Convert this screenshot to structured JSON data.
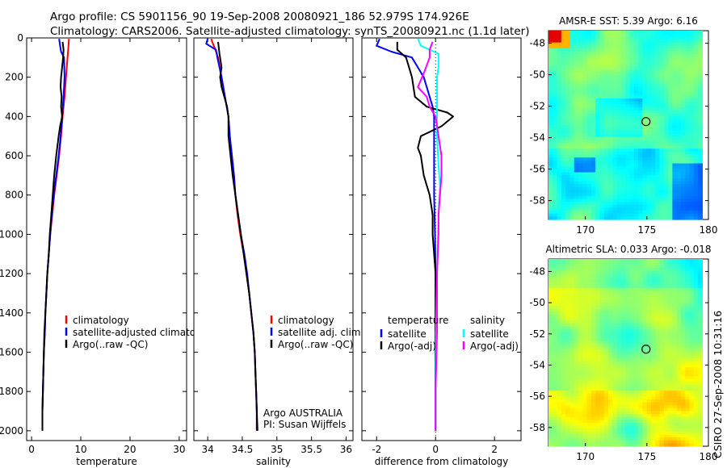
{
  "header": {
    "line1": "Argo profile: CS 5901156_90 19-Sep-2008 20080921_186 52.979S 174.926E",
    "line2": "Climatology: CARS2006. Satellite-adjusted climatology: synTS_20080921.nc (1.1d later)"
  },
  "stamp": "CSIRO 27-Sep-2008 10:31:16",
  "colors": {
    "climatology": "#ff0000",
    "satellite": "#0000ff",
    "argo": "#000000",
    "satellite_sal": "#00ffff",
    "argo_sal": "#ff00ff",
    "zero_line": "#0000ff"
  },
  "chart_data": [
    {
      "type": "line",
      "name": "temperature",
      "xlabel": "temperature",
      "xlim": [
        -1,
        31.5
      ],
      "ylim": [
        2050,
        0
      ],
      "xticks": [
        "0",
        "10",
        "20",
        "30"
      ],
      "xtick_values": [
        0,
        10,
        20,
        30
      ],
      "yticks": [
        "0",
        "200",
        "400",
        "600",
        "800",
        "1000",
        "1200",
        "1400",
        "1600",
        "1800",
        "2000"
      ],
      "ytick_values": [
        0,
        200,
        400,
        600,
        800,
        1000,
        1200,
        1400,
        1600,
        1800,
        2000
      ],
      "legend": [
        {
          "label": "climatology",
          "color": "#ff0000"
        },
        {
          "label": "satellite-adjusted climatology",
          "color": "#0000ff"
        },
        {
          "label": "Argo(..raw -QC)",
          "color": "#000000"
        }
      ],
      "series": [
        {
          "name": "climatology",
          "color": "#ff0000",
          "points": [
            [
              7.6,
              5
            ],
            [
              7.5,
              40
            ],
            [
              7.3,
              100
            ],
            [
              7.0,
              200
            ],
            [
              6.7,
              300
            ],
            [
              6.3,
              400
            ],
            [
              6.0,
              500
            ],
            [
              5.6,
              600
            ],
            [
              5.1,
              700
            ],
            [
              4.6,
              800
            ],
            [
              4.2,
              900
            ],
            [
              3.8,
              1000
            ],
            [
              3.5,
              1100
            ],
            [
              3.2,
              1200
            ],
            [
              3.0,
              1300
            ],
            [
              2.8,
              1400
            ],
            [
              2.7,
              1500
            ],
            [
              2.5,
              1600
            ],
            [
              2.4,
              1700
            ],
            [
              2.3,
              1800
            ],
            [
              2.2,
              1900
            ]
          ]
        },
        {
          "name": "satellite-adjusted climatology",
          "color": "#0000ff",
          "points": [
            [
              5.6,
              5
            ],
            [
              5.8,
              40
            ],
            [
              6.0,
              70
            ],
            [
              6.6,
              100
            ],
            [
              6.7,
              200
            ],
            [
              6.5,
              300
            ],
            [
              6.2,
              400
            ],
            [
              5.9,
              500
            ],
            [
              5.5,
              600
            ],
            [
              5.0,
              700
            ],
            [
              4.5,
              800
            ],
            [
              4.1,
              900
            ],
            [
              3.8,
              1000
            ],
            [
              3.5,
              1100
            ],
            [
              3.2,
              1200
            ],
            [
              3.0,
              1300
            ],
            [
              2.8,
              1400
            ],
            [
              2.7,
              1500
            ],
            [
              2.5,
              1600
            ],
            [
              2.4,
              1700
            ],
            [
              2.3,
              1800
            ],
            [
              2.2,
              1900
            ],
            [
              2.2,
              2000
            ]
          ]
        },
        {
          "name": "Argo(..raw -QC)",
          "color": "#000000",
          "points": [
            [
              6.3,
              20
            ],
            [
              6.5,
              60
            ],
            [
              6.4,
              100
            ],
            [
              6.2,
              150
            ],
            [
              6.0,
              200
            ],
            [
              5.9,
              250
            ],
            [
              6.1,
              300
            ],
            [
              6.0,
              350
            ],
            [
              6.2,
              400
            ],
            [
              5.8,
              450
            ],
            [
              5.5,
              500
            ],
            [
              5.2,
              560
            ],
            [
              5.0,
              600
            ],
            [
              4.6,
              700
            ],
            [
              4.3,
              800
            ],
            [
              4.0,
              900
            ],
            [
              3.7,
              1000
            ],
            [
              3.5,
              1100
            ],
            [
              3.2,
              1200
            ],
            [
              3.0,
              1300
            ],
            [
              2.8,
              1400
            ],
            [
              2.6,
              1500
            ],
            [
              2.5,
              1600
            ],
            [
              2.4,
              1700
            ],
            [
              2.3,
              1800
            ],
            [
              2.2,
              1900
            ],
            [
              2.2,
              2000
            ]
          ]
        }
      ]
    },
    {
      "type": "line",
      "name": "salinity",
      "xlabel": "salinity",
      "xlim": [
        33.8,
        36.1
      ],
      "ylim": [
        2050,
        0
      ],
      "xticks": [
        "34",
        "34.5",
        "35",
        "35.5",
        "36"
      ],
      "xtick_values": [
        34,
        34.5,
        35,
        35.5,
        36
      ],
      "legend": [
        {
          "label": "climatology",
          "color": "#ff0000"
        },
        {
          "label": "satellite adj. clim.",
          "color": "#0000ff"
        },
        {
          "label": "Argo(..raw -QC)",
          "color": "#000000"
        }
      ],
      "annotation": [
        "Argo AUSTRALIA",
        "PI: Susan Wijffels"
      ],
      "series": [
        {
          "name": "climatology",
          "color": "#ff0000",
          "points": [
            [
              34.05,
              5
            ],
            [
              34.1,
              50
            ],
            [
              34.15,
              100
            ],
            [
              34.2,
              200
            ],
            [
              34.25,
              300
            ],
            [
              34.3,
              400
            ],
            [
              34.32,
              500
            ],
            [
              34.35,
              600
            ],
            [
              34.38,
              700
            ],
            [
              34.4,
              800
            ],
            [
              34.43,
              900
            ],
            [
              34.47,
              1000
            ],
            [
              34.52,
              1100
            ],
            [
              34.56,
              1200
            ],
            [
              34.6,
              1300
            ],
            [
              34.63,
              1400
            ],
            [
              34.66,
              1500
            ],
            [
              34.68,
              1600
            ],
            [
              34.69,
              1700
            ],
            [
              34.7,
              1800
            ],
            [
              34.71,
              1900
            ],
            [
              34.71,
              2000
            ]
          ]
        },
        {
          "name": "satellite adj. clim.",
          "color": "#0000ff",
          "points": [
            [
              34.0,
              5
            ],
            [
              33.98,
              30
            ],
            [
              34.12,
              60
            ],
            [
              34.14,
              100
            ],
            [
              34.2,
              200
            ],
            [
              34.25,
              300
            ],
            [
              34.3,
              400
            ],
            [
              34.32,
              500
            ],
            [
              34.35,
              600
            ],
            [
              34.38,
              700
            ],
            [
              34.4,
              800
            ],
            [
              34.44,
              900
            ],
            [
              34.48,
              1000
            ],
            [
              34.53,
              1100
            ],
            [
              34.57,
              1200
            ],
            [
              34.6,
              1300
            ],
            [
              34.63,
              1400
            ],
            [
              34.66,
              1500
            ],
            [
              34.68,
              1600
            ],
            [
              34.69,
              1700
            ],
            [
              34.7,
              1800
            ],
            [
              34.71,
              1900
            ],
            [
              34.71,
              2000
            ]
          ]
        },
        {
          "name": "Argo(..raw -QC)",
          "color": "#000000",
          "points": [
            [
              34.15,
              20
            ],
            [
              34.17,
              80
            ],
            [
              34.2,
              150
            ],
            [
              34.18,
              200
            ],
            [
              34.2,
              250
            ],
            [
              34.24,
              300
            ],
            [
              34.28,
              350
            ],
            [
              34.3,
              400
            ],
            [
              34.3,
              500
            ],
            [
              34.33,
              600
            ],
            [
              34.36,
              700
            ],
            [
              34.4,
              800
            ],
            [
              34.44,
              900
            ],
            [
              34.48,
              1000
            ],
            [
              34.52,
              1100
            ],
            [
              34.56,
              1200
            ],
            [
              34.6,
              1300
            ],
            [
              34.63,
              1400
            ],
            [
              34.66,
              1500
            ],
            [
              34.68,
              1600
            ],
            [
              34.69,
              1700
            ],
            [
              34.7,
              1800
            ],
            [
              34.71,
              1900
            ],
            [
              34.72,
              2000
            ]
          ]
        }
      ]
    },
    {
      "type": "line",
      "name": "difference",
      "xlabel": "difference from climatology",
      "xlim": [
        -2.5,
        2.9
      ],
      "ylim": [
        2050,
        0
      ],
      "xticks": [
        "-2",
        "0",
        "2"
      ],
      "xtick_values": [
        -2,
        0,
        2
      ],
      "legend_temperature": {
        "title": "temperature",
        "items": [
          {
            "label": "satellite",
            "color": "#0000ff"
          },
          {
            "label": "Argo(-adj)",
            "color": "#000000"
          }
        ]
      },
      "legend_salinity": {
        "title": "salinity",
        "items": [
          {
            "label": "satellite",
            "color": "#00ffff"
          },
          {
            "label": "Argo(-adj)",
            "color": "#ff00ff"
          }
        ]
      },
      "series": [
        {
          "name": "temperature satellite",
          "color": "#0000ff",
          "points": [
            [
              -1.9,
              5
            ],
            [
              -2.0,
              40
            ],
            [
              -1.5,
              70
            ],
            [
              -0.8,
              100
            ],
            [
              -0.6,
              150
            ],
            [
              -0.4,
              200
            ],
            [
              -0.3,
              250
            ],
            [
              -0.2,
              300
            ],
            [
              -0.1,
              350
            ],
            [
              -0.05,
              400
            ],
            [
              -0.05,
              500
            ],
            [
              -0.05,
              600
            ],
            [
              -0.05,
              800
            ],
            [
              -0.02,
              1000
            ],
            [
              0,
              1200
            ],
            [
              0,
              1500
            ],
            [
              0,
              1800
            ],
            [
              0,
              2000
            ]
          ]
        },
        {
          "name": "temperature Argo(-adj)",
          "color": "#000000",
          "points": [
            [
              -1.3,
              20
            ],
            [
              -1.3,
              60
            ],
            [
              -1.0,
              100
            ],
            [
              -0.9,
              150
            ],
            [
              -0.8,
              200
            ],
            [
              -0.7,
              300
            ],
            [
              -0.3,
              350
            ],
            [
              0.4,
              380
            ],
            [
              0.6,
              400
            ],
            [
              0.2,
              450
            ],
            [
              -0.5,
              500
            ],
            [
              -0.6,
              560
            ],
            [
              -0.5,
              600
            ],
            [
              -0.4,
              700
            ],
            [
              -0.2,
              800
            ],
            [
              -0.1,
              900
            ],
            [
              -0.1,
              1000
            ],
            [
              0,
              1200
            ],
            [
              0,
              1500
            ],
            [
              0,
              1800
            ],
            [
              0,
              2000
            ]
          ]
        },
        {
          "name": "salinity satellite",
          "color": "#00ffff",
          "points": [
            [
              -0.6,
              5
            ],
            [
              -0.5,
              40
            ],
            [
              0.1,
              80
            ],
            [
              0.1,
              150
            ],
            [
              0.05,
              200
            ],
            [
              0.05,
              300
            ],
            [
              0.05,
              500
            ],
            [
              0.1,
              650
            ],
            [
              0.15,
              750
            ],
            [
              0.1,
              900
            ],
            [
              0.05,
              1200
            ],
            [
              0.02,
              1500
            ],
            [
              0,
              1800
            ],
            [
              0,
              2000
            ]
          ]
        },
        {
          "name": "salinity Argo(-adj)",
          "color": "#ff00ff",
          "points": [
            [
              -0.1,
              20
            ],
            [
              -0.2,
              60
            ],
            [
              -0.2,
              100
            ],
            [
              -0.4,
              180
            ],
            [
              -0.6,
              250
            ],
            [
              -0.3,
              300
            ],
            [
              -0.2,
              350
            ],
            [
              0,
              400
            ],
            [
              0.1,
              500
            ],
            [
              0.2,
              600
            ],
            [
              0.2,
              700
            ],
            [
              0.15,
              800
            ],
            [
              0.1,
              900
            ],
            [
              0.1,
              1000
            ],
            [
              0.05,
              1200
            ],
            [
              0.05,
              1500
            ],
            [
              0,
              1800
            ],
            [
              0,
              2000
            ]
          ]
        }
      ]
    },
    {
      "type": "heatmap",
      "name": "sst-map",
      "title": "AMSR-E SST: 5.39  Argo: 6.16",
      "xlim": [
        167,
        180
      ],
      "ylim": [
        -59.2,
        -47.2
      ],
      "xticks": [
        "170",
        "175",
        "180"
      ],
      "xtick_values": [
        170,
        175,
        180
      ],
      "yticks": [
        "-48",
        "-50",
        "-52",
        "-54",
        "-56",
        "-58"
      ],
      "ytick_values": [
        -48,
        -50,
        -52,
        -54,
        -56,
        -58
      ],
      "marker": [
        174.926,
        -52.979
      ]
    },
    {
      "type": "heatmap",
      "name": "sla-map",
      "title": "Altimetric SLA: 0.033  Argo: -0.018",
      "xlim": [
        167,
        180
      ],
      "ylim": [
        -59.2,
        -47.2
      ],
      "xticks": [
        "170",
        "175",
        "180"
      ],
      "xtick_values": [
        170,
        175,
        180
      ],
      "yticks": [
        "-48",
        "-50",
        "-52",
        "-54",
        "-56",
        "-58"
      ],
      "ytick_values": [
        -48,
        -50,
        -52,
        -54,
        -56,
        -58
      ],
      "marker": [
        174.926,
        -52.979
      ]
    }
  ]
}
